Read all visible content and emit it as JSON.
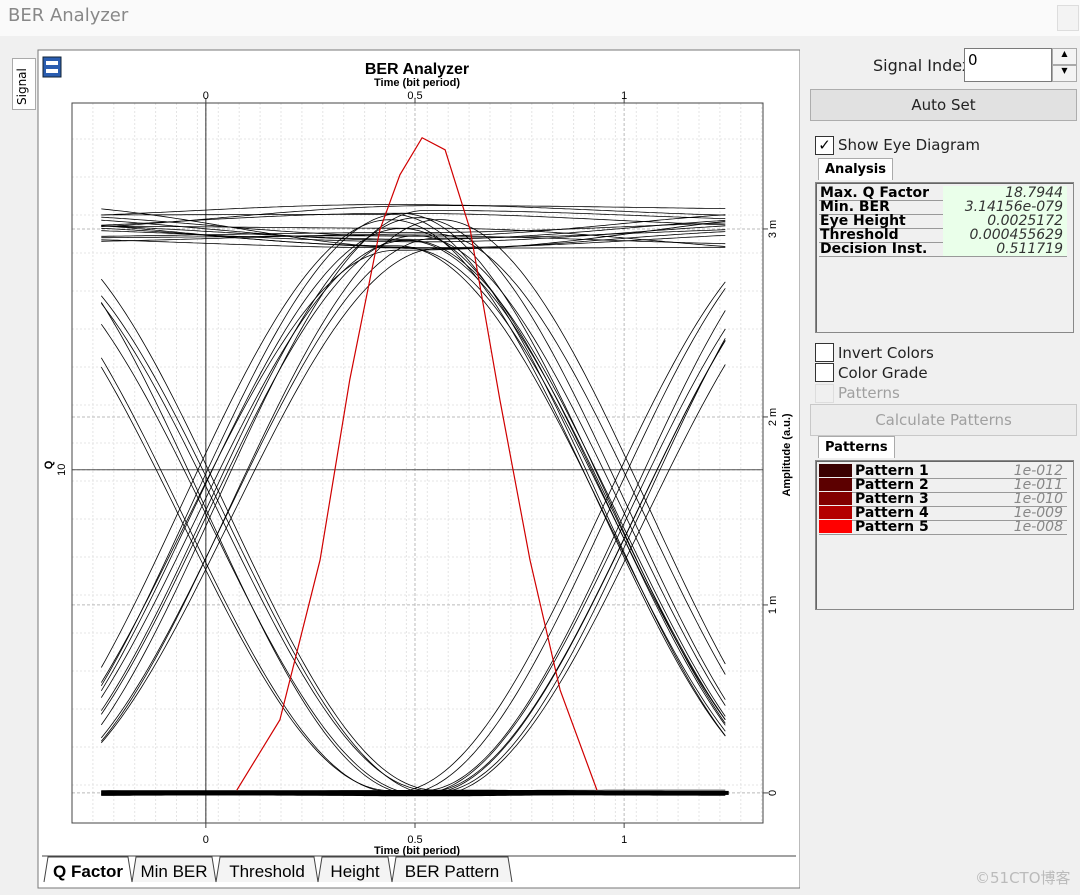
{
  "window": {
    "title": "BER Analyzer"
  },
  "side_tab": "Signal",
  "chart_data": {
    "type": "line",
    "title": "BER Analyzer",
    "x_label": "Time (bit period)",
    "y_label": "Q",
    "y2_label": "Amplitude (a.u.)",
    "xlim": [
      -0.32,
      1.332
    ],
    "xticks": [
      0,
      0.5,
      1
    ],
    "ylim": [
      0.65,
      19.71
    ],
    "yticks": [
      10
    ],
    "y2lim": [
      -0.00016,
      0.00367
    ],
    "y2ticks": [
      0,
      {
        "value": 0.001,
        "label": "1 m"
      },
      {
        "value": 0.002,
        "label": "2 m"
      },
      {
        "value": 0.003,
        "label": "3 m"
      }
    ],
    "grid": true,
    "series": [
      {
        "color": "#d00000",
        "x": [
          0.074,
          0.177,
          0.273,
          0.344,
          0.416,
          0.464,
          0.517,
          0.572,
          0.632,
          0.703,
          0.775,
          0.847,
          0.935
        ],
        "values": [
          1.52,
          3.38,
          7.61,
          12.38,
          16.35,
          17.81,
          18.79,
          18.47,
          16.35,
          11.85,
          7.61,
          4.17,
          1.52
        ]
      }
    ]
  },
  "tabs": [
    "Q Factor",
    "Min BER",
    "Threshold",
    "Height",
    "BER Pattern"
  ],
  "panel": {
    "signal_index_label": "Signal Index:",
    "signal_index": "0",
    "auto_set": "Auto Set",
    "show_eye": "Show Eye Diagram",
    "analysis_tab": "Analysis",
    "analysis": [
      [
        "Max. Q Factor",
        "18.7944"
      ],
      [
        "Min. BER",
        "3.14156e-079"
      ],
      [
        "Eye Height",
        "0.0025172"
      ],
      [
        "Threshold",
        "0.000455629"
      ],
      [
        "Decision Inst.",
        "0.511719"
      ]
    ],
    "invert_colors": "Invert Colors",
    "color_grade": "Color Grade",
    "patterns_check": "Patterns",
    "calculate_patterns": "Calculate Patterns",
    "patterns_tab": "Patterns",
    "patterns": [
      {
        "name": "Pattern 1",
        "color": "#3a0000",
        "value": "1e-012"
      },
      {
        "name": "Pattern 2",
        "color": "#5c0000",
        "value": "1e-011"
      },
      {
        "name": "Pattern 3",
        "color": "#820000",
        "value": "1e-010"
      },
      {
        "name": "Pattern 4",
        "color": "#b40000",
        "value": "1e-009"
      },
      {
        "name": "Pattern 5",
        "color": "#ff0000",
        "value": "1e-008"
      }
    ]
  },
  "watermark": "©51CTO博客"
}
